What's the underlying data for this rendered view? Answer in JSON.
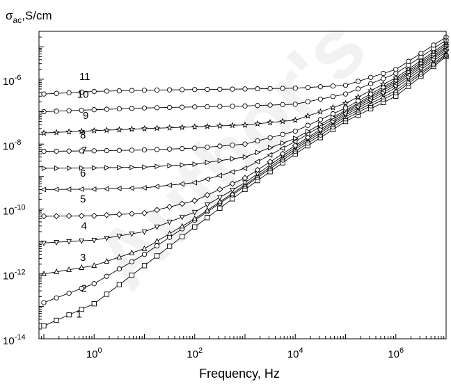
{
  "chart_data": {
    "type": "line",
    "ylabel": {
      "symbol": "σ",
      "subscript": "ac",
      "rest": ",S/cm"
    },
    "xlabel": "Frequency, Hz",
    "xscale": "log",
    "yscale": "log",
    "xlim": [
      0.08,
      10000000
    ],
    "ylim": [
      1e-14,
      3e-05
    ],
    "x_ticks": [
      {
        "value": 1,
        "base": "10",
        "exp": "0"
      },
      {
        "value": 100,
        "base": "10",
        "exp": "2"
      },
      {
        "value": 10000,
        "base": "10",
        "exp": "4"
      },
      {
        "value": 1000000,
        "base": "10",
        "exp": "6"
      }
    ],
    "y_ticks": [
      {
        "value": 1e-14,
        "base": "10",
        "exp": "-14"
      },
      {
        "value": 1e-12,
        "base": "10",
        "exp": "-12"
      },
      {
        "value": 1e-10,
        "base": "10",
        "exp": "-10"
      },
      {
        "value": 1e-08,
        "base": "10",
        "exp": "-8"
      },
      {
        "value": 1e-06,
        "base": "10",
        "exp": "-6"
      }
    ],
    "watermark": "Author's",
    "series": [
      {
        "name": "1",
        "marker": "square",
        "x": [
          0.1,
          1,
          10,
          100,
          1000,
          10000,
          100000,
          1000000,
          10000000
        ],
        "y": [
          2.5e-14,
          1.2e-13,
          1.8e-12,
          2.8e-11,
          4e-10,
          5e-09,
          5e-08,
          3e-07,
          5e-06
        ]
      },
      {
        "name": "2",
        "marker": "circle",
        "x": [
          0.1,
          1,
          10,
          100,
          1000,
          10000,
          100000,
          1000000,
          10000000
        ],
        "y": [
          1.3e-13,
          5e-13,
          4e-12,
          4.5e-11,
          5e-10,
          6e-09,
          6e-08,
          3.8e-07,
          5.5e-06
        ]
      },
      {
        "name": "3",
        "marker": "triangle-up",
        "x": [
          0.1,
          1,
          10,
          100,
          1000,
          10000,
          100000,
          1000000,
          10000000
        ],
        "y": [
          1e-12,
          1.8e-12,
          6e-12,
          5e-11,
          5.5e-10,
          7e-09,
          7e-08,
          4.5e-07,
          6e-06
        ]
      },
      {
        "name": "4",
        "marker": "triangle-down",
        "x": [
          0.1,
          1,
          10,
          100,
          1000,
          10000,
          100000,
          1000000,
          10000000
        ],
        "y": [
          9e-12,
          1.1e-11,
          2e-11,
          8e-11,
          6.5e-10,
          8e-09,
          8e-08,
          5.5e-07,
          7e-06
        ]
      },
      {
        "name": "5",
        "marker": "diamond",
        "x": [
          0.1,
          1,
          10,
          100,
          1000,
          10000,
          100000,
          1000000,
          10000000
        ],
        "y": [
          6e-11,
          6.2e-11,
          7.5e-11,
          1.8e-10,
          9e-10,
          9e-09,
          9e-08,
          6.5e-07,
          8e-06
        ]
      },
      {
        "name": "6",
        "marker": "triangle-left",
        "x": [
          0.1,
          1,
          10,
          100,
          1000,
          10000,
          100000,
          1000000,
          10000000
        ],
        "y": [
          4e-10,
          4.1e-10,
          4.5e-10,
          6.5e-10,
          1.8e-09,
          1.2e-08,
          1e-07,
          7.5e-07,
          9e-06
        ]
      },
      {
        "name": "7",
        "marker": "triangle-right",
        "x": [
          0.1,
          1,
          10,
          100,
          1000,
          10000,
          100000,
          1000000,
          10000000
        ],
        "y": [
          1.8e-09,
          1.85e-09,
          1.95e-09,
          2.4e-09,
          4e-09,
          1.5e-08,
          1.1e-07,
          8.5e-07,
          1e-05
        ]
      },
      {
        "name": "8",
        "marker": "circle",
        "x": [
          0.1,
          1,
          10,
          100,
          1000,
          10000,
          100000,
          1000000,
          10000000
        ],
        "y": [
          6e-09,
          6.2e-09,
          6.6e-09,
          7.5e-09,
          1e-08,
          2.5e-08,
          1.3e-07,
          9.5e-07,
          1.15e-05
        ]
      },
      {
        "name": "9",
        "marker": "star",
        "x": [
          0.1,
          1,
          10,
          100,
          1000,
          10000,
          100000,
          1000000,
          10000000
        ],
        "y": [
          2.2e-08,
          2.6e-08,
          3e-08,
          3.4e-08,
          3.9e-08,
          5.5e-08,
          1.8e-07,
          1.1e-06,
          1.3e-05
        ]
      },
      {
        "name": "10",
        "marker": "circle",
        "x": [
          0.1,
          1,
          10,
          100,
          1000,
          10000,
          100000,
          1000000,
          10000000
        ],
        "y": [
          1e-07,
          1.15e-07,
          1.3e-07,
          1.4e-07,
          1.5e-07,
          1.7e-07,
          3.5e-07,
          1.5e-06,
          1.6e-05
        ]
      },
      {
        "name": "11",
        "marker": "circle",
        "x": [
          0.1,
          1,
          10,
          100,
          1000,
          10000,
          100000,
          1000000,
          10000000
        ],
        "y": [
          3.5e-07,
          4.2e-07,
          4.6e-07,
          4.8e-07,
          5e-07,
          5.3e-07,
          6.5e-07,
          2e-06,
          2e-05
        ]
      }
    ],
    "labels": [
      {
        "text": "1",
        "x": 0.5,
        "y": 4.5e-14
      },
      {
        "text": "2",
        "x": 0.63,
        "y": 2.8e-13
      },
      {
        "text": "3",
        "x": 0.6,
        "y": 2.5e-12
      },
      {
        "text": "4",
        "x": 0.63,
        "y": 2.4e-11
      },
      {
        "text": "5",
        "x": 0.6,
        "y": 1.6e-10
      },
      {
        "text": "6",
        "x": 0.6,
        "y": 1e-09
      },
      {
        "text": "7",
        "x": 0.63,
        "y": 5e-09
      },
      {
        "text": "8",
        "x": 0.6,
        "y": 1.5e-08
      },
      {
        "text": "9",
        "x": 0.68,
        "y": 6e-08
      },
      {
        "text": "10",
        "x": 0.6,
        "y": 2.7e-07
      },
      {
        "text": "11",
        "x": 0.65,
        "y": 9.5e-07
      }
    ]
  }
}
